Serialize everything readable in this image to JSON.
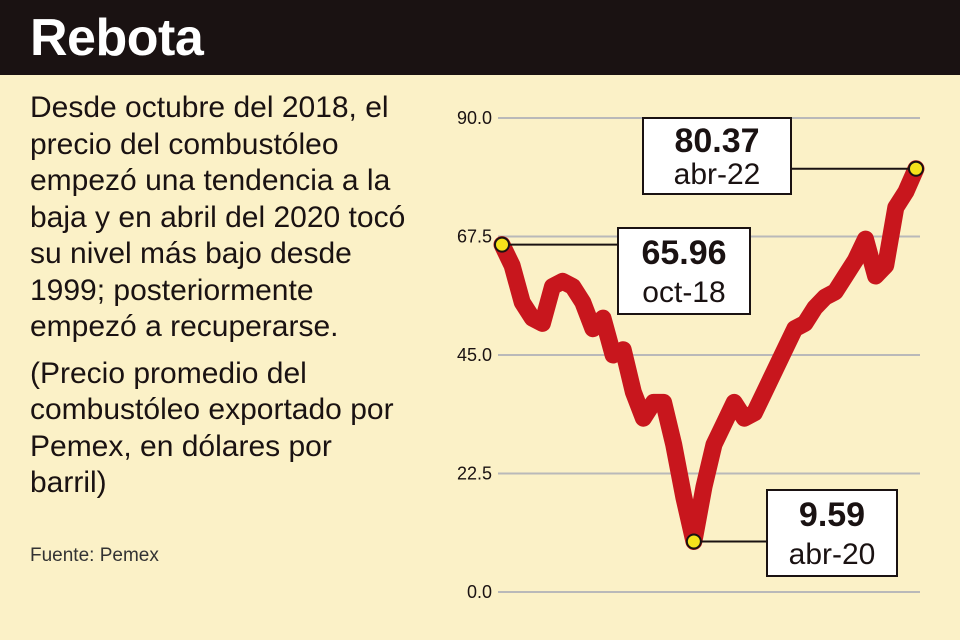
{
  "header": {
    "title": "Rebota"
  },
  "description": {
    "main": "Desde octubre del 2018, el precio del combustóleo empezó una tendencia a la baja y en abril del 2020 tocó su nivel más bajo desde 1999; posteriormente empezó a recuperarse.",
    "note": "(Precio promedio del combustóleo exportado por Pemex, en dólares por barril)"
  },
  "source": "Fuente: Pemex",
  "colors": {
    "header": "#1a1212",
    "background": "#fbf1c7",
    "line": "#c8161d",
    "marker": "#f5e21b"
  },
  "chart_data": {
    "type": "line",
    "title": "",
    "xlabel": "",
    "ylabel": "",
    "ylim": [
      0,
      90
    ],
    "y_ticks": [
      "0.0",
      "22.5",
      "45.0",
      "67.5",
      "90.0"
    ],
    "grid": true,
    "legend": "none",
    "x_range": [
      "oct-18",
      "abr-22"
    ],
    "series": [
      {
        "values": [
          65.96,
          62,
          55,
          52,
          51,
          58,
          59,
          58,
          55,
          50,
          52,
          45,
          46,
          38,
          33,
          36,
          36,
          28,
          18,
          9.59,
          20,
          28,
          32,
          36,
          33,
          34,
          38,
          42,
          46,
          50,
          51,
          54,
          56,
          57,
          60,
          63,
          67,
          60,
          62,
          73,
          76,
          80.37
        ]
      }
    ],
    "annotations": [
      {
        "value": "65.96",
        "date": "oct-18"
      },
      {
        "value": "9.59",
        "date": "abr-20"
      },
      {
        "value": "80.37",
        "date": "abr-22"
      }
    ]
  }
}
